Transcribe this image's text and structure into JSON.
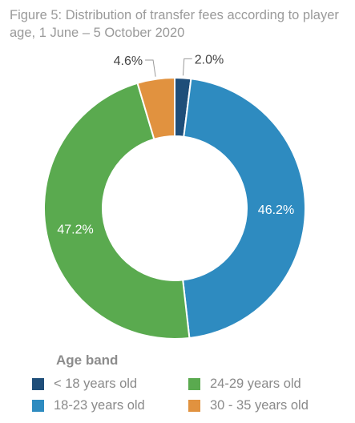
{
  "chart_data": {
    "type": "pie",
    "title": "Figure 5: Distribution of transfer fees according to player age, 1 June – 5 October 2020",
    "legend_title": "Age band",
    "legend_position": "bottom",
    "slices": [
      {
        "label": "< 18 years old",
        "value": 2.0,
        "display": "2.0%",
        "color": "#1f4e79"
      },
      {
        "label": "18-23 years old",
        "value": 46.2,
        "display": "46.2%",
        "color": "#2e8bc0"
      },
      {
        "label": "24-29 years old",
        "value": 47.2,
        "display": "47.2%",
        "color": "#5aaa4f"
      },
      {
        "label": "30 - 35 years old",
        "value": 4.6,
        "display": "4.6%",
        "color": "#e1923f"
      }
    ]
  }
}
